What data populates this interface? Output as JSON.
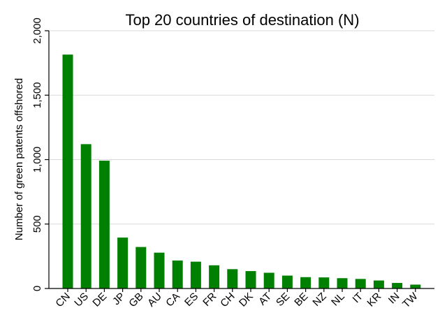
{
  "chart_data": {
    "type": "bar",
    "title": "Top 20 countries of destination (N)",
    "xlabel": "",
    "ylabel": "Number of green patents offshored",
    "categories": [
      "CN",
      "US",
      "DE",
      "JP",
      "GB",
      "AU",
      "CA",
      "ES",
      "FR",
      "CH",
      "DK",
      "AT",
      "SE",
      "BE",
      "NZ",
      "NL",
      "IT",
      "KR",
      "IN",
      "TW"
    ],
    "values": [
      1815,
      1120,
      992,
      395,
      322,
      278,
      217,
      208,
      180,
      150,
      135,
      122,
      100,
      88,
      86,
      80,
      74,
      62,
      43,
      30
    ],
    "ylim": [
      0,
      2000
    ],
    "yticks": [
      0,
      500,
      1000,
      1500,
      2000
    ],
    "ytick_labels": [
      "0",
      "500",
      "1,000",
      "1,500",
      "2,000"
    ],
    "grid": true,
    "legend": "none",
    "colors": {
      "bar": "#008000",
      "grid": "#d9d9d9",
      "axis": "#000000",
      "background": "#ffffff"
    }
  }
}
